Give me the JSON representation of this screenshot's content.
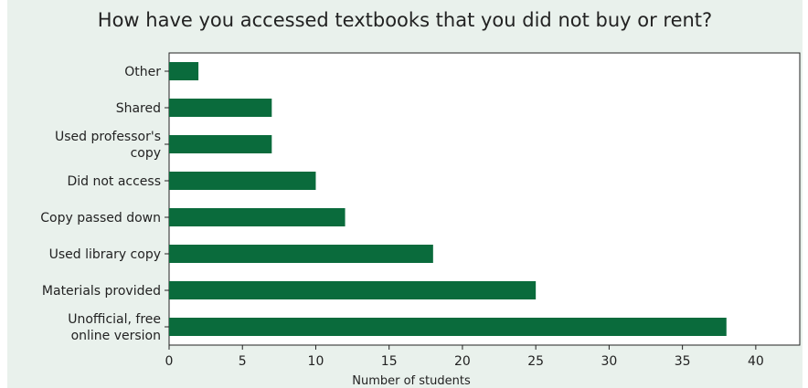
{
  "chart_data": {
    "type": "bar",
    "orientation": "horizontal",
    "title": "How have you accessed textbooks that you did not buy or rent?",
    "xlabel": "Number of students",
    "ylabel": "",
    "categories": [
      [
        "Other"
      ],
      [
        "Shared"
      ],
      [
        "Used professor's",
        "copy"
      ],
      [
        "Did not access"
      ],
      [
        "Copy passed down"
      ],
      [
        "Used library copy"
      ],
      [
        "Materials provided"
      ],
      [
        "Unofficial, free",
        "online version"
      ]
    ],
    "values": [
      2,
      7,
      7,
      10,
      12,
      18,
      25,
      38
    ],
    "xlim": [
      0,
      43
    ],
    "xticks": [
      "0",
      "5",
      "10",
      "15",
      "20",
      "25",
      "30",
      "35",
      "40"
    ],
    "bar_color": "#0a6b3c",
    "grid": false
  }
}
